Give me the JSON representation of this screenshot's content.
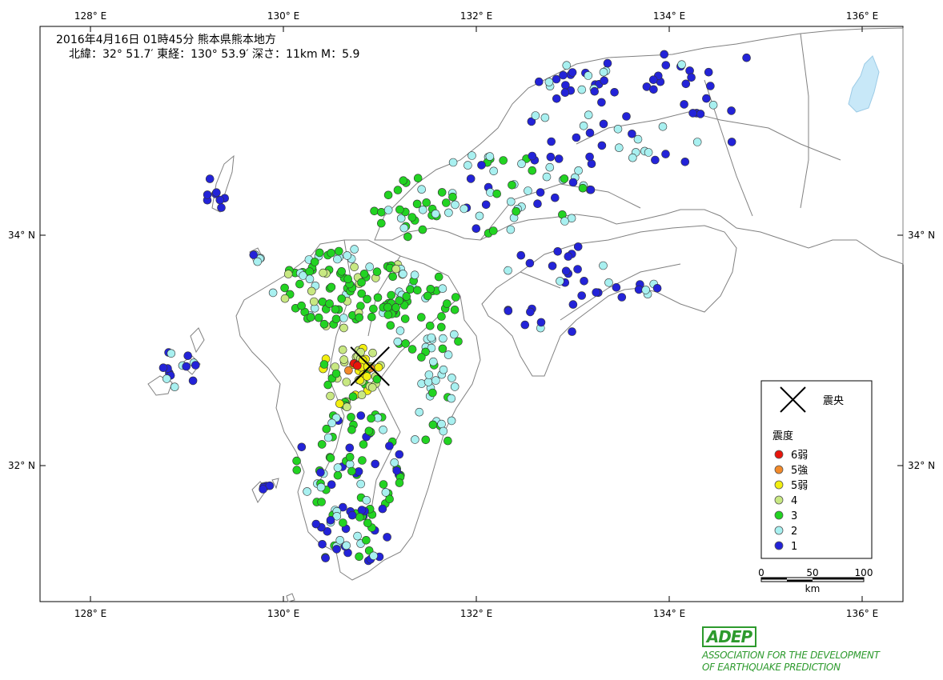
{
  "info": {
    "line1": "2016年4月16日 01時45分  熊本県熊本地方",
    "line2": "北緯：32° 51.7′ 東経：130° 53.9′ 深さ：11km  M：5.9"
  },
  "axes": {
    "lon_ticks": [
      "128° E",
      "130° E",
      "132° E",
      "134° E",
      "136° E"
    ],
    "lat_ticks": [
      "34° N",
      "32° N"
    ]
  },
  "legend": {
    "epicenter_label": "震央",
    "intensity_title": "震度",
    "items": [
      {
        "label": "6弱",
        "color": "#e8150b"
      },
      {
        "label": "5強",
        "color": "#f28a2a"
      },
      {
        "label": "5弱",
        "color": "#f2ef10"
      },
      {
        "label": "4",
        "color": "#c8e882"
      },
      {
        "label": "3",
        "color": "#22d322"
      },
      {
        "label": "2",
        "color": "#a8f0f0"
      },
      {
        "label": "1",
        "color": "#2323d8"
      }
    ]
  },
  "scale": {
    "ticks": [
      "0",
      "50",
      "100"
    ],
    "unit": "km"
  },
  "epicenter": {
    "lat": 32.862,
    "lon": 130.898
  },
  "logo": {
    "mark": "ADEP",
    "line1": "ASSOCIATION FOR THE DEVELOPMENT",
    "line2": "OF EARTHQUAKE PREDICTION"
  },
  "colors": {
    "land_outline": "#808080",
    "lake": "#c8e8f8",
    "frame": "#000000"
  }
}
